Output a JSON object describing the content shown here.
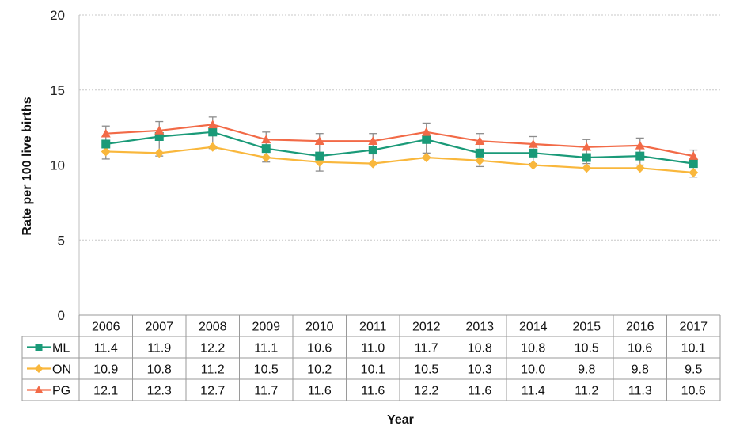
{
  "chart_data": {
    "type": "line",
    "xlabel": "Year",
    "ylabel": "Rate per 100 live births",
    "ylim": [
      0,
      20
    ],
    "yticks": [
      0,
      5,
      10,
      15,
      20
    ],
    "grid": "horizontal",
    "legend": "data table below chart",
    "categories": [
      "2006",
      "2007",
      "2008",
      "2009",
      "2010",
      "2011",
      "2012",
      "2013",
      "2014",
      "2015",
      "2016",
      "2017"
    ],
    "series": [
      {
        "name": "ML",
        "color": "#1a9a78",
        "marker": "square",
        "values": [
          11.4,
          11.9,
          12.2,
          11.1,
          10.6,
          11.0,
          11.7,
          10.8,
          10.8,
          10.5,
          10.6,
          10.1
        ],
        "display": [
          "11.4",
          "11.9",
          "12.2",
          "11.1",
          "10.6",
          "11.0",
          "11.7",
          "10.8",
          "10.8",
          "10.5",
          "10.6",
          "10.1"
        ]
      },
      {
        "name": "ON",
        "color": "#f9b73c",
        "marker": "diamond",
        "values": [
          10.9,
          10.8,
          11.2,
          10.5,
          10.2,
          10.1,
          10.5,
          10.3,
          10.0,
          9.8,
          9.8,
          9.5
        ],
        "display": [
          "10.9",
          "10.8",
          "11.2",
          "10.5",
          "10.2",
          "10.1",
          "10.5",
          "10.3",
          "10.0",
          "9.8",
          "9.8",
          "9.5"
        ]
      },
      {
        "name": "PG",
        "color": "#f26a47",
        "marker": "triangle",
        "values": [
          12.1,
          12.3,
          12.7,
          11.7,
          11.6,
          11.6,
          12.2,
          11.6,
          11.4,
          11.2,
          11.3,
          10.6
        ],
        "display": [
          "12.1",
          "12.3",
          "12.7",
          "11.7",
          "11.6",
          "11.6",
          "12.2",
          "11.6",
          "11.4",
          "11.2",
          "11.3",
          "10.6"
        ]
      }
    ],
    "error_bars": {
      "color": "#8c8c8c",
      "values": [
        [
          10.4,
          12.6
        ],
        [
          10.6,
          12.9
        ],
        [
          11.1,
          13.2
        ],
        [
          10.2,
          12.2
        ],
        [
          9.6,
          12.1
        ],
        [
          10.0,
          12.1
        ],
        [
          10.8,
          12.8
        ],
        [
          9.9,
          12.1
        ],
        [
          10.1,
          11.9
        ],
        [
          10.1,
          11.7
        ],
        [
          10.0,
          11.8
        ],
        [
          9.2,
          11.0
        ]
      ]
    }
  }
}
